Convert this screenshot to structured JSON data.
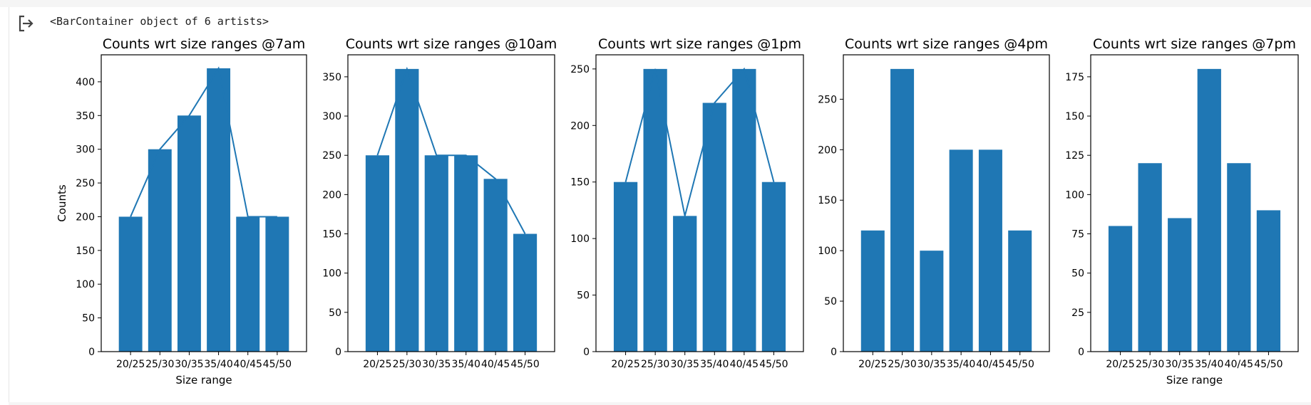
{
  "output": {
    "repr_text": "<BarContainer object of 6 artists>",
    "icon": "output-redirect-icon"
  },
  "colors": {
    "bar": "#1f77b4",
    "line": "#1f77b4",
    "axes": "#000000"
  },
  "chart_data": [
    {
      "type": "bar",
      "title": "Counts wrt size ranges @7am",
      "categories": [
        "20/25",
        "25/30",
        "30/35",
        "35/40",
        "40/45",
        "45/50"
      ],
      "values": [
        200,
        300,
        350,
        420,
        200,
        200
      ],
      "line_overlay": true,
      "ylim": [
        0,
        440
      ],
      "yticks": [
        0,
        50,
        100,
        150,
        200,
        250,
        300,
        350,
        400
      ],
      "xlabel": "Size range",
      "ylabel": "Counts",
      "grid": false
    },
    {
      "type": "bar",
      "title": "Counts wrt size ranges @10am",
      "categories": [
        "20/25",
        "25/30",
        "30/35",
        "35/40",
        "40/45",
        "45/50"
      ],
      "values": [
        250,
        360,
        250,
        250,
        220,
        150
      ],
      "line_overlay": true,
      "ylim": [
        0,
        378
      ],
      "yticks": [
        0,
        50,
        100,
        150,
        200,
        250,
        300,
        350
      ],
      "xlabel": "",
      "ylabel": "",
      "grid": false
    },
    {
      "type": "bar",
      "title": "Counts wrt size ranges @1pm",
      "categories": [
        "20/25",
        "25/30",
        "30/35",
        "35/40",
        "40/45",
        "45/50"
      ],
      "values": [
        150,
        250,
        120,
        220,
        250,
        150
      ],
      "line_overlay": true,
      "ylim": [
        0,
        262.5
      ],
      "yticks": [
        0,
        50,
        100,
        150,
        200,
        250
      ],
      "xlabel": "",
      "ylabel": "",
      "grid": false
    },
    {
      "type": "bar",
      "title": "Counts wrt size ranges @4pm",
      "categories": [
        "20/25",
        "25/30",
        "30/35",
        "35/40",
        "40/45",
        "45/50"
      ],
      "values": [
        120,
        280,
        100,
        200,
        200,
        120
      ],
      "line_overlay": false,
      "ylim": [
        0,
        294
      ],
      "yticks": [
        0,
        50,
        100,
        150,
        200,
        250
      ],
      "xlabel": "",
      "ylabel": "",
      "grid": false
    },
    {
      "type": "bar",
      "title": "Counts wrt size ranges @7pm",
      "categories": [
        "20/25",
        "25/30",
        "30/35",
        "35/40",
        "40/45",
        "45/50"
      ],
      "values": [
        80,
        120,
        85,
        180,
        120,
        90
      ],
      "line_overlay": false,
      "ylim": [
        0,
        189
      ],
      "yticks": [
        0,
        25,
        50,
        75,
        100,
        125,
        150,
        175
      ],
      "xlabel": "Size range",
      "ylabel": "",
      "grid": false
    }
  ]
}
